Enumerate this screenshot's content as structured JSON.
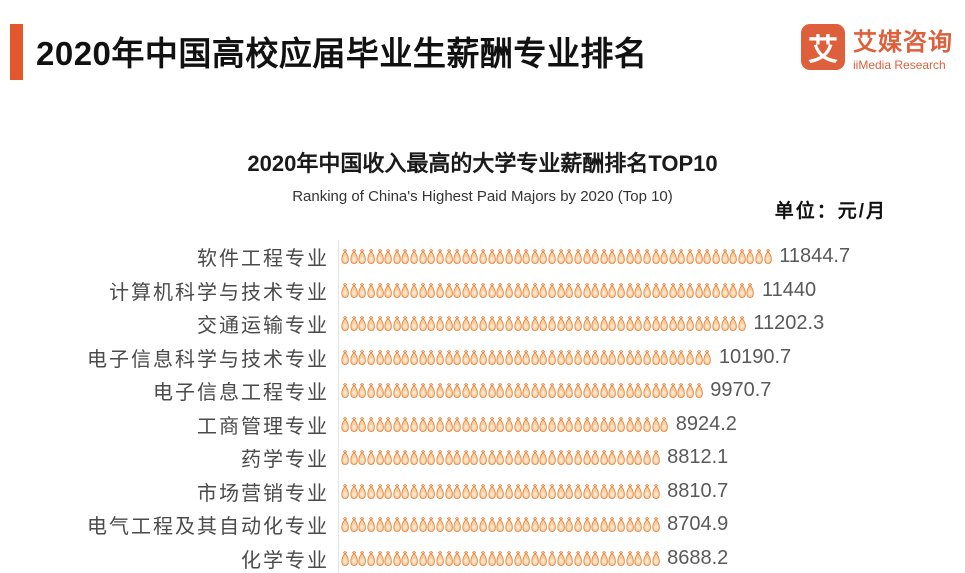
{
  "header": {
    "title": "2020年中国高校应届毕业生薪酬专业排名"
  },
  "logo": {
    "glyph": "艾",
    "name_cn": "艾媒咨询",
    "name_en": "iiMedia Research"
  },
  "chart_data": {
    "type": "bar",
    "variant": "horizontal-pictogram",
    "title": "2020年中国收入最高的大学专业薪酬排名TOP10",
    "subtitle": "Ranking of China's Highest Paid Majors by 2020 (Top 10)",
    "unit_label": "单位：元/月",
    "categories": [
      "软件工程专业",
      "计算机科学与技术专业",
      "交通运输专业",
      "电子信息科学与技术专业",
      "电子信息工程专业",
      "工商管理专业",
      "药学专业",
      "市场营销专业",
      "电气工程及其自动化专业",
      "化学专业"
    ],
    "values": [
      11844.7,
      11440,
      11202.3,
      10190.7,
      9970.7,
      8924.2,
      8812.1,
      8810.7,
      8704.9,
      8688.2
    ],
    "xlim": [
      0,
      12000
    ],
    "icon": "money-bag",
    "icon_unit_value": 237,
    "legend": "none",
    "grid": "off",
    "colors": {
      "accent": "#E2572B",
      "logo": "#DD5F3B",
      "icon_stroke": "#E0813E",
      "icon_fill": "#F9CFA0",
      "icon_highlight": "#FCE6CB",
      "label_text": "#4a4a4a",
      "value_text": "#595959",
      "axis_line": "#e4e4e4"
    }
  }
}
